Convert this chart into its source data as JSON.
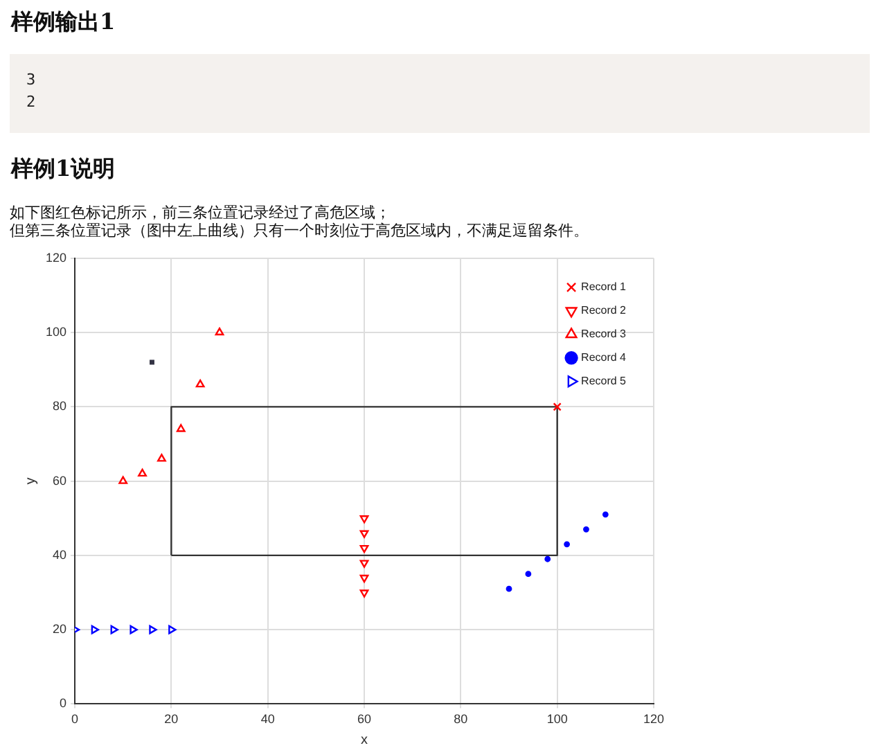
{
  "chart_data": {
    "type": "scatter",
    "title": "样例输出1",
    "subtitle": "样例1说明",
    "annotations": [
      "3",
      "2",
      "如下图红色标记所示，前三条位置记录经过了高危区域；",
      "但第三条位置记录（图中左上曲线）只有一个时刻位于高危区域内，不满足逗留条件。"
    ],
    "xlabel": "x",
    "ylabel": "y",
    "xlim": [
      0,
      120
    ],
    "xticks": [
      0,
      20,
      40,
      60,
      80,
      100,
      120
    ],
    "ylim": [
      0,
      120
    ],
    "yticks": [
      0,
      20,
      40,
      60,
      80,
      100,
      120
    ],
    "grid": true,
    "legend": "top right",
    "series": [
      {
        "type": "line",
        "color": "#333333",
        "marker": "none",
        "line_style": "solid",
        "x": [
          20,
          20,
          100
        ],
        "values": [
          40,
          80,
          80
        ]
      },
      {
        "type": "line",
        "color": "#333333",
        "marker": "none",
        "line_style": "solid",
        "x": [
          20,
          100,
          100
        ],
        "values": [
          40,
          40,
          80
        ]
      },
      {
        "name": "Record 1",
        "color": "#ff0000",
        "marker": "cross",
        "x": [
          100
        ],
        "values": [
          80
        ]
      },
      {
        "name": "Record 2",
        "color": "#ff0000",
        "marker": "triangle-down",
        "x": [
          60,
          60,
          60,
          60,
          60,
          60
        ],
        "values": [
          50,
          46,
          42,
          38,
          34,
          30
        ]
      },
      {
        "name": "Record 3",
        "color": "#ff0000",
        "marker": "triangle",
        "x": [
          10,
          14,
          18,
          22,
          26,
          30
        ],
        "values": [
          60,
          62,
          66,
          74,
          86,
          100
        ]
      },
      {
        "name": "Record 4",
        "color": "#0000ff",
        "marker": "circle",
        "x": [
          90,
          94,
          98,
          102,
          106,
          110
        ],
        "values": [
          31,
          35,
          39,
          43,
          47,
          51
        ]
      },
      {
        "name": "Record 5",
        "color": "#0000ff",
        "marker": "triangle-right",
        "x": [
          0,
          4,
          8,
          12,
          16,
          20
        ],
        "values": [
          20,
          20,
          20,
          20,
          20,
          20
        ]
      },
      {
        "color": "#333344",
        "marker": "square",
        "x": [
          16
        ],
        "values": [
          92
        ]
      }
    ]
  }
}
